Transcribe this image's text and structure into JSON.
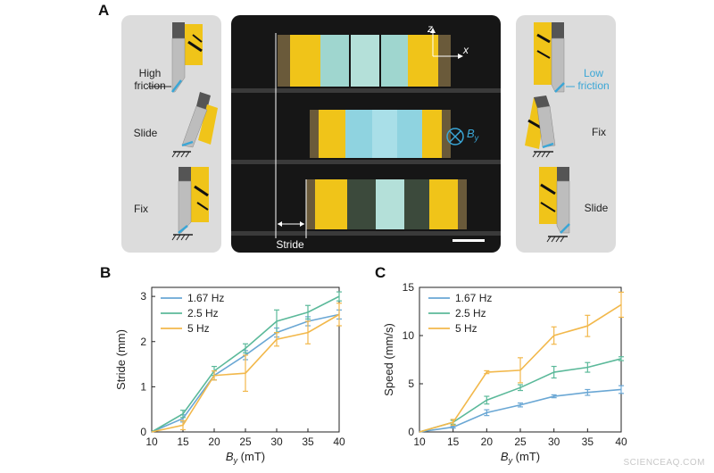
{
  "panel_labels": {
    "a": "A",
    "b": "B",
    "c": "C"
  },
  "panel_a": {
    "left_labels": {
      "high_friction_1": "High",
      "high_friction_2": "friction",
      "slide": "Slide",
      "fix": "Fix"
    },
    "right_labels": {
      "low_friction_1": "Low",
      "low_friction_2": "friction",
      "fix": "Fix",
      "slide": "Slide"
    },
    "center": {
      "stride_label": "Stride",
      "axis_z": "z",
      "axis_x": "x",
      "field_symbol": "B",
      "field_sub": "y"
    },
    "colors": {
      "yellow": "#f0c419",
      "teal": "#9fd6cf",
      "friction_blue": "#3aa6d6"
    }
  },
  "watermark": "SCIENCEAQ.COM",
  "chart_data": [
    {
      "type": "line",
      "xlabel_main": "B",
      "xlabel_sub": "y",
      "xlabel_unit": " (mT)",
      "ylabel": "Stride (mm)",
      "xlim": [
        10,
        40
      ],
      "ylim": [
        0,
        3.2
      ],
      "xticks": [
        10,
        15,
        20,
        25,
        30,
        35,
        40
      ],
      "yticks": [
        0,
        1,
        2,
        3
      ],
      "legend_position": "top-left",
      "x": [
        10,
        15,
        20,
        25,
        30,
        35,
        40
      ],
      "series": [
        {
          "name": "1.67 Hz",
          "color": "#6aa7d4",
          "values": [
            0,
            0.3,
            1.25,
            1.7,
            2.2,
            2.45,
            2.6
          ],
          "errors": [
            0,
            0.08,
            0.1,
            0.1,
            0.1,
            0.1,
            0.1
          ]
        },
        {
          "name": "2.5 Hz",
          "color": "#5bb99a",
          "values": [
            0,
            0.4,
            1.35,
            1.85,
            2.45,
            2.65,
            3.0
          ],
          "errors": [
            0,
            0.08,
            0.1,
            0.1,
            0.25,
            0.15,
            0.1
          ]
        },
        {
          "name": "5 Hz",
          "color": "#f2b84b",
          "values": [
            0,
            0.15,
            1.25,
            1.3,
            2.05,
            2.2,
            2.6
          ],
          "errors": [
            0,
            0.1,
            0.1,
            0.4,
            0.15,
            0.25,
            0.25
          ]
        }
      ]
    },
    {
      "type": "line",
      "xlabel_main": "B",
      "xlabel_sub": "y",
      "xlabel_unit": " (mT)",
      "ylabel": "Speed (mm/s)",
      "xlim": [
        10,
        40
      ],
      "ylim": [
        0,
        15
      ],
      "xticks": [
        10,
        15,
        20,
        25,
        30,
        35,
        40
      ],
      "yticks": [
        0,
        5,
        10,
        15
      ],
      "legend_position": "top-left",
      "x": [
        10,
        15,
        20,
        25,
        30,
        35,
        40
      ],
      "series": [
        {
          "name": "1.67 Hz",
          "color": "#6aa7d4",
          "values": [
            0,
            0.5,
            2.0,
            2.8,
            3.7,
            4.1,
            4.4
          ],
          "errors": [
            0,
            0.1,
            0.3,
            0.2,
            0.15,
            0.3,
            0.4
          ]
        },
        {
          "name": "2.5 Hz",
          "color": "#5bb99a",
          "values": [
            0,
            1.0,
            3.3,
            4.6,
            6.2,
            6.7,
            7.6
          ],
          "errors": [
            0,
            0.2,
            0.4,
            0.3,
            0.6,
            0.5,
            0.2
          ]
        },
        {
          "name": "5 Hz",
          "color": "#f2b84b",
          "values": [
            0,
            1.0,
            6.2,
            6.4,
            10.0,
            11.0,
            13.2
          ],
          "errors": [
            0,
            0.3,
            0.15,
            1.3,
            0.9,
            1.1,
            1.3
          ]
        }
      ]
    }
  ]
}
